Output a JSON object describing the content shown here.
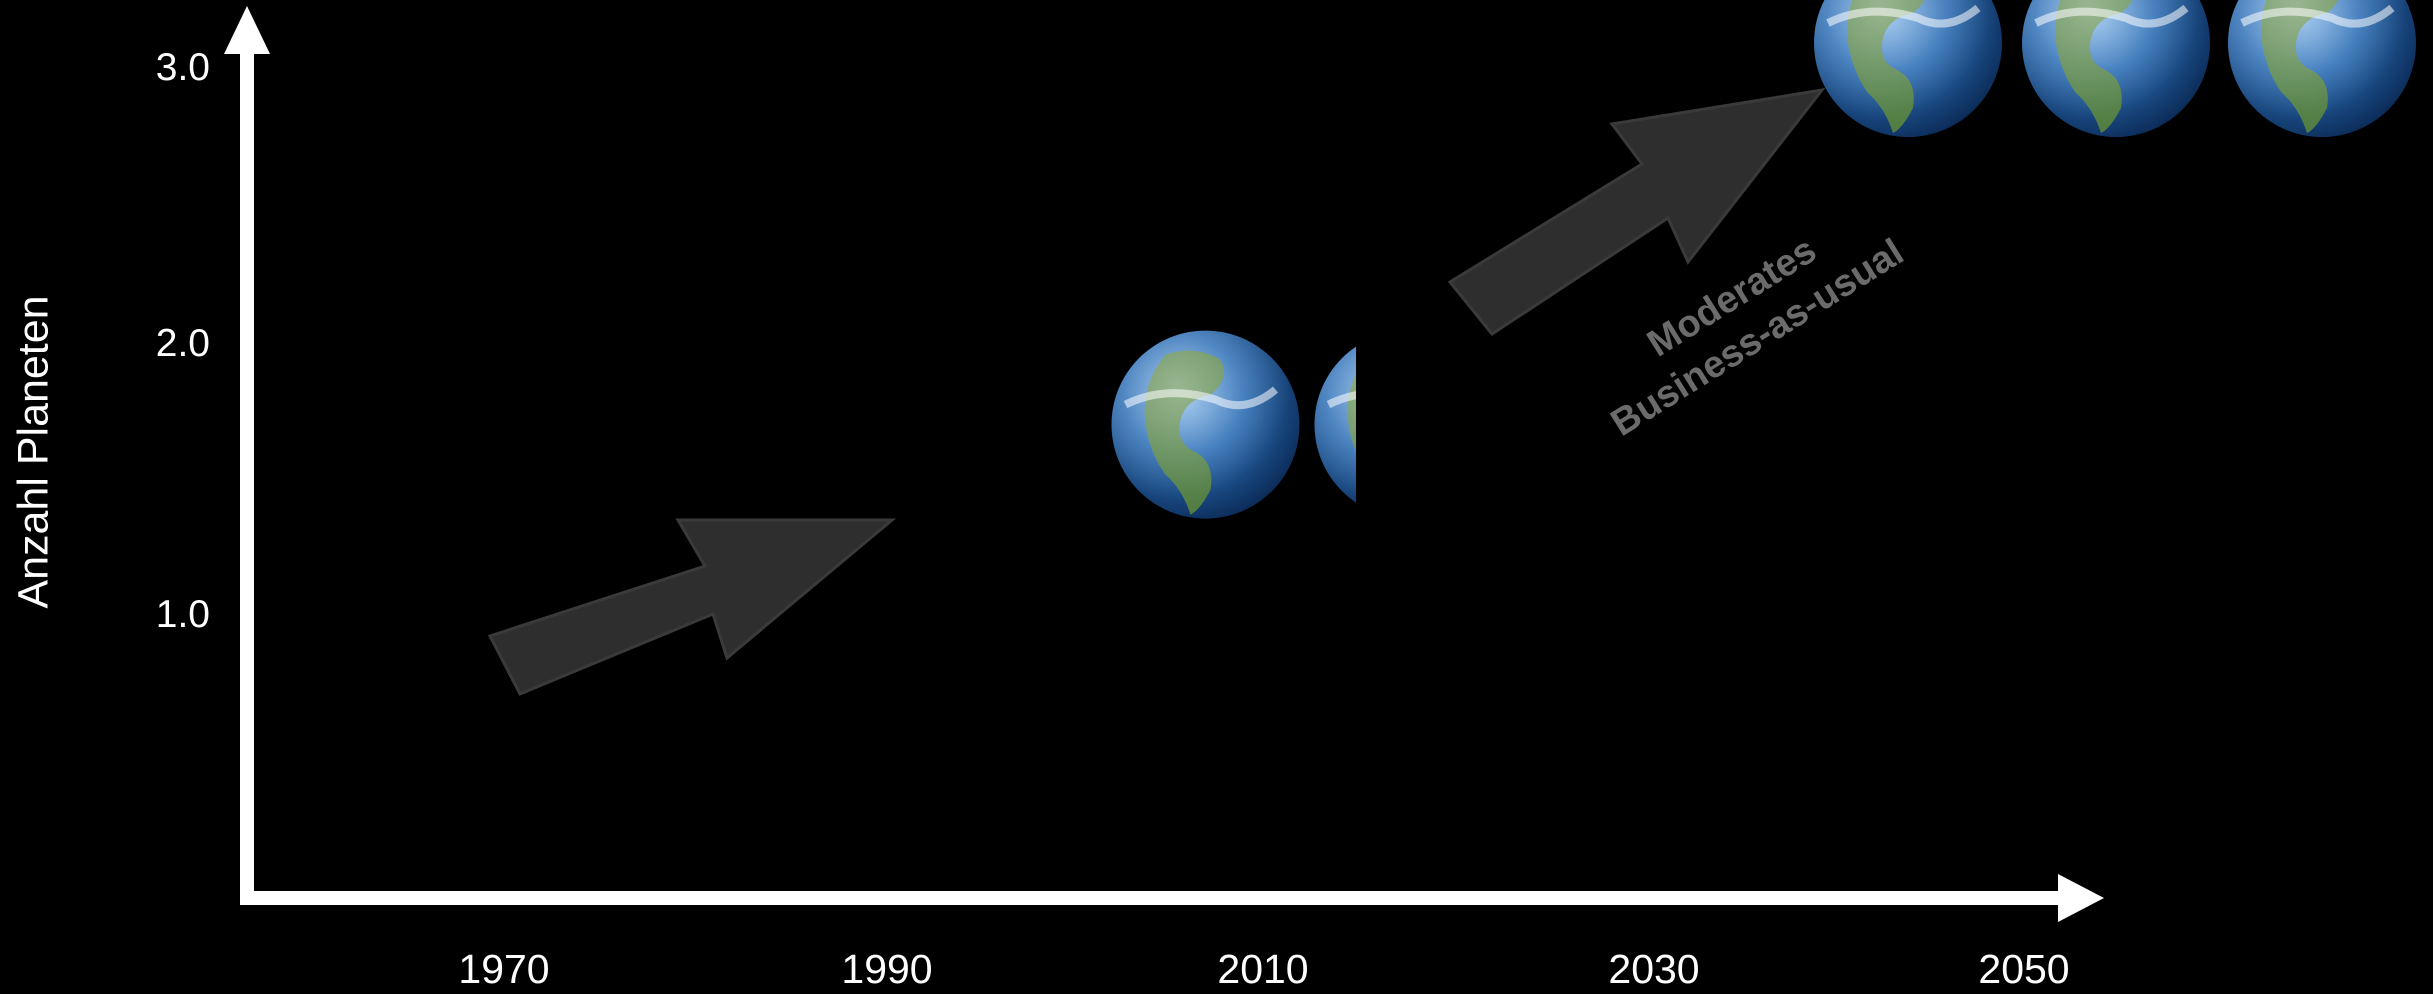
{
  "chart_data": {
    "type": "scatter",
    "title": "",
    "xlabel": "",
    "ylabel": "Anzahl Planeten",
    "x_ticks": [
      "1970",
      "1990",
      "2010",
      "2030",
      "2050"
    ],
    "y_ticks": [
      "1.0",
      "2.0",
      "3.0"
    ],
    "series": [
      {
        "marker": "earth-globe",
        "points": [
          {
            "x": 2010,
            "y": 1.7
          }
        ]
      },
      {
        "marker": "earth-globe",
        "points": [
          {
            "x": 2050,
            "y": 3.0
          }
        ]
      }
    ],
    "annotations": [
      {
        "text_lines": [
          "Moderates",
          "Business-as-usual"
        ],
        "color": "#6b6b6b"
      }
    ],
    "colors": {
      "background": "#000000",
      "axis": "#ffffff",
      "arrow": "#2e2e2e",
      "annotation": "#6b6b6b",
      "ocean": "#1f5fa8",
      "land": "#5f8a3c"
    }
  }
}
